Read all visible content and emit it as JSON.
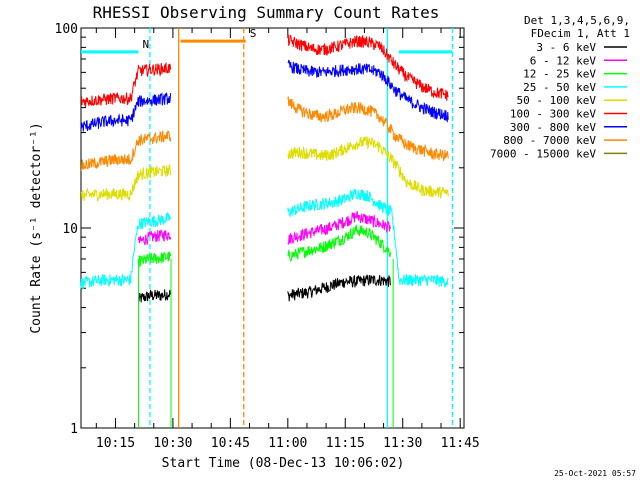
{
  "chart_data": {
    "type": "line",
    "title": "RHESSI Observing Summary Count Rates",
    "xlabel": "Start Time (08-Dec-13 10:06:02)",
    "ylabel": "Count Rate (s⁻¹ detector⁻¹)",
    "yscale": "log",
    "ylim": [
      1,
      100
    ],
    "xlim": [
      "10:06",
      "11:46"
    ],
    "x_ticks": [
      "10:15",
      "10:30",
      "10:45",
      "11:00",
      "11:15",
      "11:30",
      "11:45"
    ],
    "y_ticks": [
      "1",
      "10",
      "100"
    ],
    "legend_header": [
      "Det 1,3,4,5,6,9,",
      "FDecim 1, Att 1"
    ],
    "legend_position": "right",
    "timestamp": "25-Oct-2021 05:57",
    "series": [
      {
        "name": "3 - 6 keV",
        "color": "#000000",
        "points": [
          [
            "10:21",
            4.4
          ],
          [
            "10:24",
            4.6
          ],
          [
            "10:27",
            4.6
          ],
          [
            "10:29",
            4.7
          ],
          [
            "10:29.5",
            4.7
          ],
          [
            "11:00",
            4.6
          ],
          [
            "11:03",
            4.7
          ],
          [
            "11:06",
            4.8
          ],
          [
            "11:09",
            5.0
          ],
          [
            "11:12",
            5.2
          ],
          [
            "11:15",
            5.4
          ],
          [
            "11:18",
            5.4
          ],
          [
            "11:21",
            5.5
          ],
          [
            "11:24",
            5.5
          ],
          [
            "11:27",
            5.4
          ]
        ]
      },
      {
        "name": "6 - 12 keV",
        "color": "#ff00ff",
        "points": [
          [
            "10:21",
            8.5
          ],
          [
            "10:24",
            9.0
          ],
          [
            "10:27",
            9.2
          ],
          [
            "10:29",
            9.3
          ],
          [
            "10:29.5",
            9.3
          ],
          [
            "11:00",
            8.8
          ],
          [
            "11:03",
            9.2
          ],
          [
            "11:06",
            9.5
          ],
          [
            "11:09",
            9.8
          ],
          [
            "11:12",
            10.2
          ],
          [
            "11:15",
            10.8
          ],
          [
            "11:18",
            11.5
          ],
          [
            "11:21",
            11.0
          ],
          [
            "11:24",
            10.5
          ],
          [
            "11:27",
            10.0
          ]
        ]
      },
      {
        "name": "12 - 25 keV",
        "color": "#00ff00",
        "points": [
          [
            "10:21",
            6.8
          ],
          [
            "10:24",
            7.0
          ],
          [
            "10:27",
            7.1
          ],
          [
            "10:29",
            7.2
          ],
          [
            "10:29.5",
            7.2
          ],
          [
            "11:00",
            7.2
          ],
          [
            "11:03",
            7.5
          ],
          [
            "11:06",
            7.8
          ],
          [
            "11:09",
            8.0
          ],
          [
            "11:12",
            8.5
          ],
          [
            "11:15",
            9.0
          ],
          [
            "11:18",
            9.8
          ],
          [
            "11:21",
            9.5
          ],
          [
            "11:24",
            8.5
          ],
          [
            "11:27",
            7.5
          ]
        ]
      },
      {
        "name": "25 - 50 keV",
        "color": "#00ffff",
        "points": [
          [
            "10:06",
            5.3
          ],
          [
            "10:09",
            5.4
          ],
          [
            "10:12",
            5.5
          ],
          [
            "10:15",
            5.5
          ],
          [
            "10:19",
            5.5
          ],
          [
            "10:21",
            10.5
          ],
          [
            "10:24",
            10.8
          ],
          [
            "10:27",
            11.0
          ],
          [
            "10:29",
            11.2
          ],
          [
            "10:29.5",
            11.2
          ],
          [
            "11:00",
            12.0
          ],
          [
            "11:03",
            12.5
          ],
          [
            "11:06",
            13.0
          ],
          [
            "11:09",
            13.2
          ],
          [
            "11:12",
            13.5
          ],
          [
            "11:15",
            14.0
          ],
          [
            "11:18",
            15.0
          ],
          [
            "11:21",
            14.5
          ],
          [
            "11:24",
            13.0
          ],
          [
            "11:27",
            12.0
          ],
          [
            "11:29",
            5.5
          ],
          [
            "11:33",
            5.5
          ],
          [
            "11:37",
            5.5
          ],
          [
            "11:42",
            5.4
          ]
        ]
      },
      {
        "name": "50 - 100 keV",
        "color": "#dddd00",
        "points": [
          [
            "10:06",
            14.5
          ],
          [
            "10:09",
            14.7
          ],
          [
            "10:12",
            14.8
          ],
          [
            "10:15",
            14.8
          ],
          [
            "10:19",
            14.8
          ],
          [
            "10:21",
            18.5
          ],
          [
            "10:24",
            19.0
          ],
          [
            "10:27",
            19.2
          ],
          [
            "10:29",
            19.4
          ],
          [
            "10:29.5",
            19.4
          ],
          [
            "11:00",
            23.5
          ],
          [
            "11:03",
            24.0
          ],
          [
            "11:06",
            23.5
          ],
          [
            "11:09",
            23.0
          ],
          [
            "11:12",
            23.5
          ],
          [
            "11:15",
            25.0
          ],
          [
            "11:18",
            26.5
          ],
          [
            "11:21",
            27.0
          ],
          [
            "11:24",
            25.5
          ],
          [
            "11:28",
            21.0
          ],
          [
            "11:31",
            17.0
          ],
          [
            "11:35",
            15.5
          ],
          [
            "11:38",
            15.2
          ],
          [
            "11:42",
            15.0
          ]
        ]
      },
      {
        "name": "100 - 300 keV",
        "color": "#ff0000",
        "points": [
          [
            "10:06",
            43.0
          ],
          [
            "10:09",
            43.5
          ],
          [
            "10:12",
            44.0
          ],
          [
            "10:15",
            44.5
          ],
          [
            "10:19",
            44.5
          ],
          [
            "10:21",
            61.0
          ],
          [
            "10:24",
            62.0
          ],
          [
            "10:27",
            62.5
          ],
          [
            "10:29",
            63.0
          ],
          [
            "10:29.5",
            63.0
          ],
          [
            "11:00",
            87.0
          ],
          [
            "11:03",
            83.0
          ],
          [
            "11:06",
            79.0
          ],
          [
            "11:09",
            78.0
          ],
          [
            "11:12",
            80.0
          ],
          [
            "11:15",
            83.0
          ],
          [
            "11:18",
            86.0
          ],
          [
            "11:21",
            85.0
          ],
          [
            "11:24",
            81.0
          ],
          [
            "11:28",
            65.0
          ],
          [
            "11:31",
            57.0
          ],
          [
            "11:35",
            51.0
          ],
          [
            "11:38",
            48.0
          ],
          [
            "11:42",
            46.0
          ]
        ]
      },
      {
        "name": "300 - 800 keV",
        "color": "#0000ff",
        "points": [
          [
            "10:06",
            32.0
          ],
          [
            "10:09",
            33.0
          ],
          [
            "10:12",
            34.0
          ],
          [
            "10:15",
            34.5
          ],
          [
            "10:19",
            34.5
          ],
          [
            "10:21",
            43.0
          ],
          [
            "10:24",
            43.5
          ],
          [
            "10:27",
            44.0
          ],
          [
            "10:29",
            44.5
          ],
          [
            "10:29.5",
            44.5
          ],
          [
            "11:00",
            65.0
          ],
          [
            "11:03",
            62.0
          ],
          [
            "11:06",
            60.5
          ],
          [
            "11:09",
            60.0
          ],
          [
            "11:12",
            61.0
          ],
          [
            "11:15",
            62.0
          ],
          [
            "11:18",
            62.5
          ],
          [
            "11:21",
            62.0
          ],
          [
            "11:24",
            60.0
          ],
          [
            "11:28",
            49.0
          ],
          [
            "11:31",
            44.0
          ],
          [
            "11:35",
            40.0
          ],
          [
            "11:38",
            38.0
          ],
          [
            "11:42",
            36.5
          ]
        ]
      },
      {
        "name": "800 - 7000 keV",
        "color": "#ff8800",
        "points": [
          [
            "10:06",
            20.5
          ],
          [
            "10:09",
            21.0
          ],
          [
            "10:12",
            21.5
          ],
          [
            "10:15",
            22.0
          ],
          [
            "10:19",
            22.0
          ],
          [
            "10:21",
            27.5
          ],
          [
            "10:24",
            28.0
          ],
          [
            "10:27",
            28.5
          ],
          [
            "10:29",
            29.0
          ],
          [
            "10:29.5",
            29.0
          ],
          [
            "11:00",
            43.0
          ],
          [
            "11:03",
            39.0
          ],
          [
            "11:06",
            37.0
          ],
          [
            "11:09",
            36.0
          ],
          [
            "11:12",
            37.0
          ],
          [
            "11:15",
            39.0
          ],
          [
            "11:18",
            40.0
          ],
          [
            "11:21",
            39.0
          ],
          [
            "11:24",
            36.0
          ],
          [
            "11:28",
            29.0
          ],
          [
            "11:31",
            26.0
          ],
          [
            "11:35",
            24.5
          ],
          [
            "11:38",
            23.5
          ],
          [
            "11:42",
            23.0
          ]
        ]
      },
      {
        "name": "7000 - 15000 keV",
        "color": "#808000",
        "points": []
      }
    ],
    "annotations": [
      {
        "label": "N",
        "color": "#00ffff",
        "spans": [
          [
            "10:06",
            "10:21"
          ],
          [
            "11:29",
            "11:43"
          ]
        ],
        "value": 76
      },
      {
        "label": "S",
        "color": "#ff8800",
        "spans": [
          [
            "10:32",
            "10:49"
          ]
        ],
        "value": 86
      }
    ],
    "vlines": [
      {
        "time": "10:24",
        "color": "#00ffff",
        "style": "dashed"
      },
      {
        "time": "10:31.5",
        "color": "#ff8800",
        "style": "solid"
      },
      {
        "time": "10:48.5",
        "color": "#ff8800",
        "style": "dashed"
      },
      {
        "time": "11:26",
        "color": "#00ffff",
        "style": "solid"
      },
      {
        "time": "11:43",
        "color": "#00ffff",
        "style": "dashed"
      }
    ]
  }
}
